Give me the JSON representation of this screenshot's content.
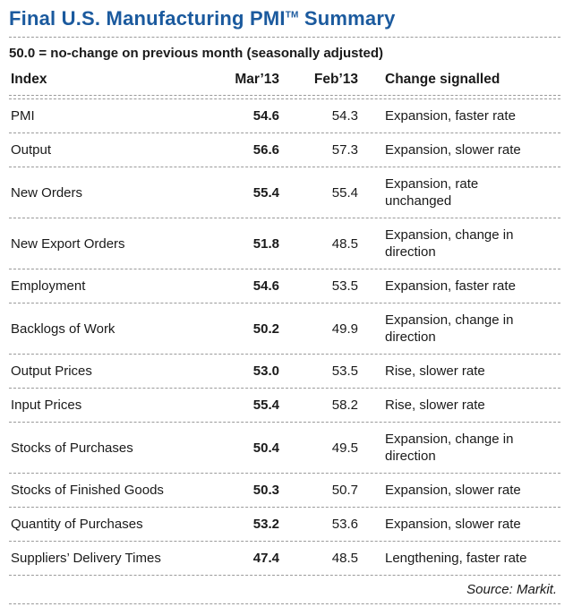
{
  "title": {
    "main": "Final U.S. Manufacturing PMI",
    "tm": "TM",
    "suffix": " Summary"
  },
  "subtitle": "50.0 = no-change on previous month (seasonally adjusted)",
  "columns": [
    "Index",
    "Mar’13",
    "Feb’13",
    "Change signalled"
  ],
  "rows": [
    {
      "index": "PMI",
      "mar": "54.6",
      "feb": "54.3",
      "change": "Expansion, faster rate"
    },
    {
      "index": "Output",
      "mar": "56.6",
      "feb": "57.3",
      "change": "Expansion, slower rate"
    },
    {
      "index": "New Orders",
      "mar": "55.4",
      "feb": "55.4",
      "change": "Expansion, rate\nunchanged"
    },
    {
      "index": "New Export Orders",
      "mar": "51.8",
      "feb": "48.5",
      "change": "Expansion, change in\ndirection"
    },
    {
      "index": "Employment",
      "mar": "54.6",
      "feb": "53.5",
      "change": "Expansion, faster rate"
    },
    {
      "index": "Backlogs of Work",
      "mar": "50.2",
      "feb": "49.9",
      "change": "Expansion, change in\ndirection"
    },
    {
      "index": "Output Prices",
      "mar": "53.0",
      "feb": "53.5",
      "change": "Rise, slower rate"
    },
    {
      "index": "Input Prices",
      "mar": "55.4",
      "feb": "58.2",
      "change": "Rise, slower rate"
    },
    {
      "index": "Stocks of Purchases",
      "mar": "50.4",
      "feb": "49.5",
      "change": "Expansion, change in\ndirection"
    },
    {
      "index": "Stocks of Finished Goods",
      "mar": "50.3",
      "feb": "50.7",
      "change": "Expansion, slower rate"
    },
    {
      "index": "Quantity of Purchases",
      "mar": "53.2",
      "feb": "53.6",
      "change": "Expansion, slower rate"
    },
    {
      "index": "Suppliers’ Delivery Times",
      "mar": "47.4",
      "feb": "48.5",
      "change": "Lengthening, faster rate"
    }
  ],
  "source": "Source: Markit.",
  "colors": {
    "title_blue": "#1b5a9e",
    "rule_gray": "#9a9a9a"
  },
  "chart_data": {
    "type": "table",
    "title": "Final U.S. Manufacturing PMI (TM) Summary",
    "subtitle": "50.0 = no-change on previous month (seasonally adjusted)",
    "columns": [
      "Index",
      "Mar'13",
      "Feb'13",
      "Change signalled"
    ],
    "rows": [
      [
        "PMI",
        54.6,
        54.3,
        "Expansion, faster rate"
      ],
      [
        "Output",
        56.6,
        57.3,
        "Expansion, slower rate"
      ],
      [
        "New Orders",
        55.4,
        55.4,
        "Expansion, rate unchanged"
      ],
      [
        "New Export Orders",
        51.8,
        48.5,
        "Expansion, change in direction"
      ],
      [
        "Employment",
        54.6,
        53.5,
        "Expansion, faster rate"
      ],
      [
        "Backlogs of Work",
        50.2,
        49.9,
        "Expansion, change in direction"
      ],
      [
        "Output Prices",
        53.0,
        53.5,
        "Rise, slower rate"
      ],
      [
        "Input Prices",
        55.4,
        58.2,
        "Rise, slower rate"
      ],
      [
        "Stocks of Purchases",
        50.4,
        49.5,
        "Expansion, change in direction"
      ],
      [
        "Stocks of Finished Goods",
        50.3,
        50.7,
        "Expansion, slower rate"
      ],
      [
        "Quantity of Purchases",
        53.2,
        53.6,
        "Expansion, slower rate"
      ],
      [
        "Suppliers' Delivery Times",
        47.4,
        48.5,
        "Lengthening, faster rate"
      ]
    ],
    "source": "Source: Markit."
  }
}
